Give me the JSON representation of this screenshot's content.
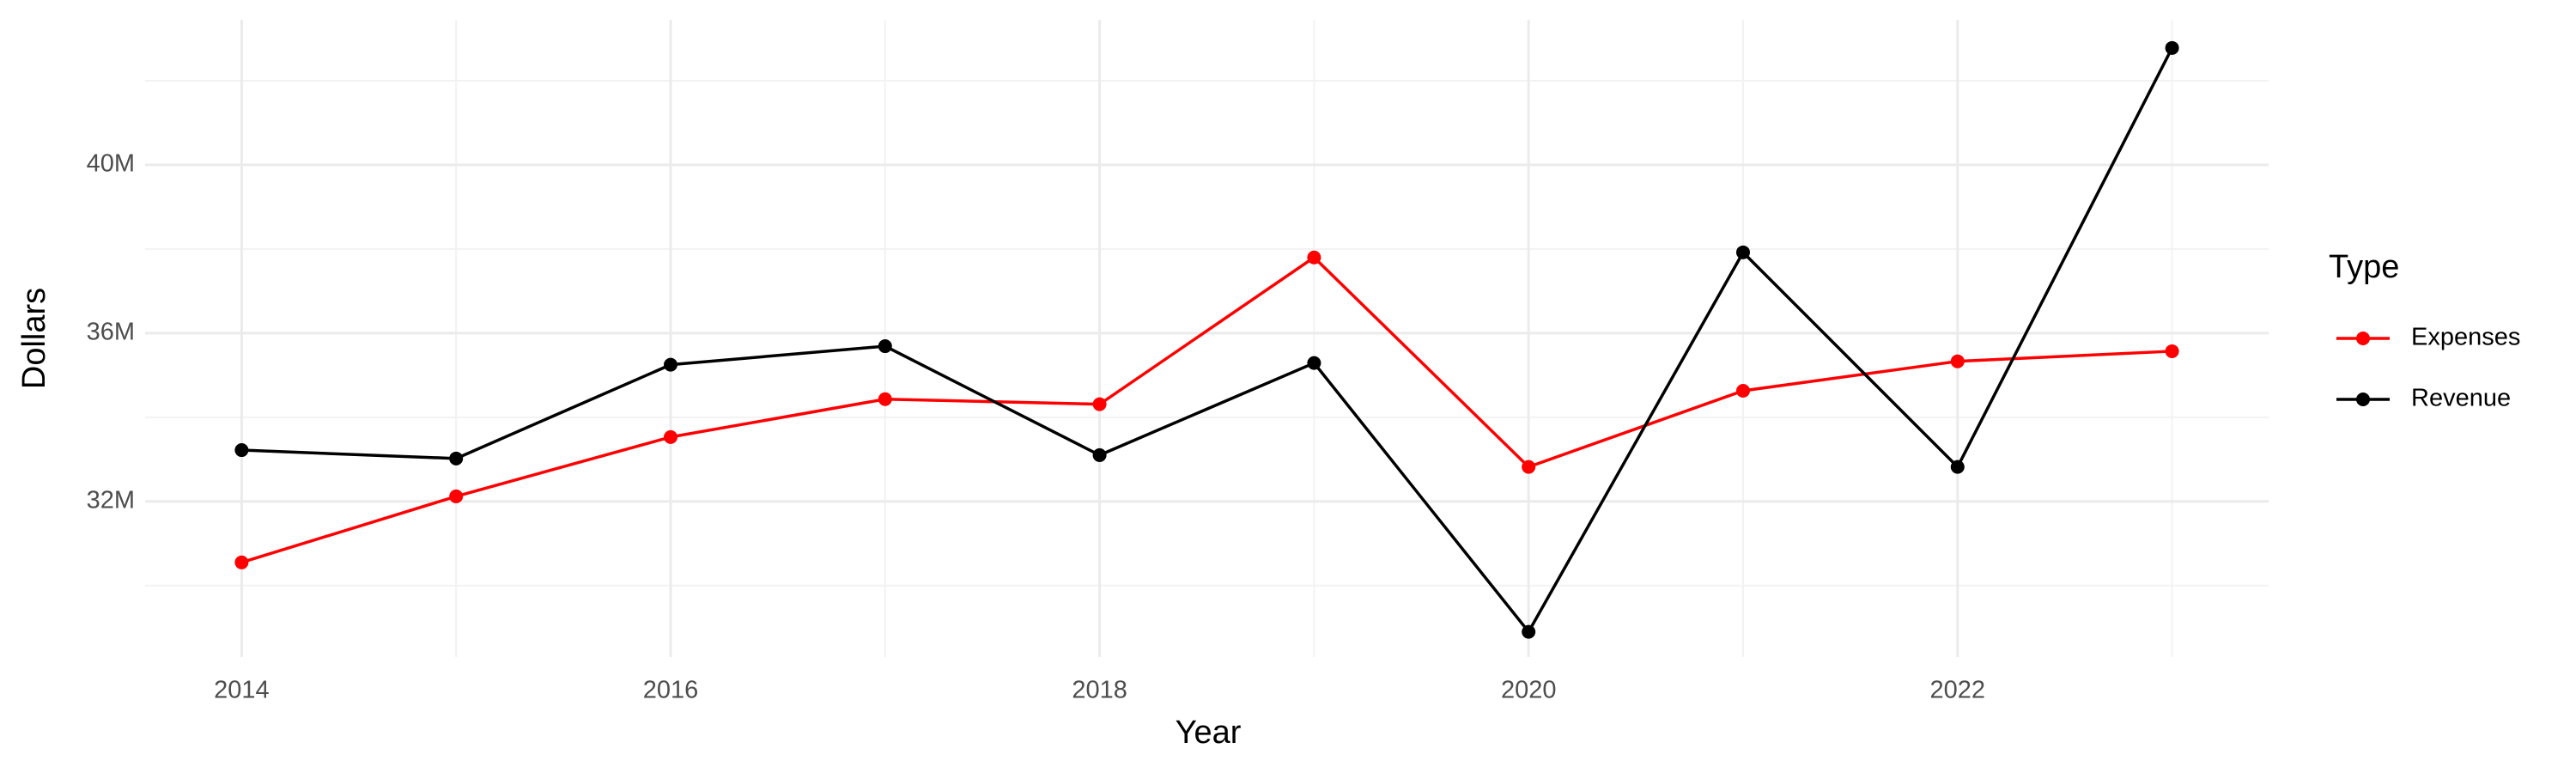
{
  "chart_data": {
    "type": "line",
    "x_label": "Year",
    "y_label": "Dollars",
    "legend_title": "Type",
    "legend_position": "right",
    "grid": true,
    "x": [
      2014,
      2015,
      2016,
      2017,
      2018,
      2019,
      2020,
      2021,
      2022,
      2023
    ],
    "series": [
      {
        "name": "Expenses",
        "color": "#ff0000",
        "values": [
          30550000,
          32120000,
          33530000,
          34430000,
          34310000,
          37800000,
          32820000,
          34630000,
          35330000,
          35570000
        ]
      },
      {
        "name": "Revenue",
        "color": "#000000",
        "values": [
          33220000,
          33020000,
          35250000,
          35690000,
          33100000,
          35290000,
          28900000,
          37920000,
          32820000,
          42780000
        ]
      }
    ],
    "xlim": [
      2013.55,
      2023.45
    ],
    "xticks": [
      2014,
      2016,
      2018,
      2020,
      2022
    ],
    "ylim": [
      28300000,
      43450000
    ],
    "yticks": [
      {
        "value": 32000000,
        "label": "32M"
      },
      {
        "value": 36000000,
        "label": "36M"
      },
      {
        "value": 40000000,
        "label": "40M"
      }
    ]
  }
}
